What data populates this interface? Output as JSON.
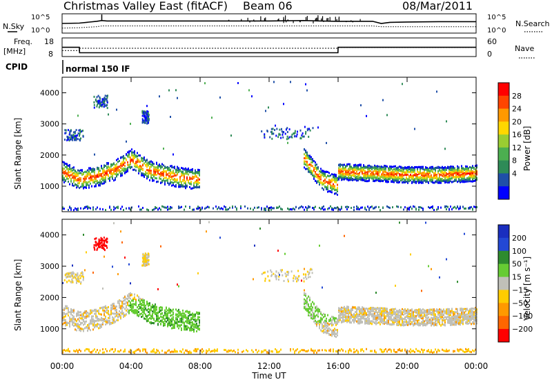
{
  "header": {
    "title": "Christmas Valley East (fitACF)",
    "beam": "Beam 06",
    "date": "08/Mar/2011"
  },
  "strip_labels": {
    "nsky": "N.Sky",
    "nsearch": "N.Search",
    "freq_line1": "Freq.",
    "freq_line2": "[MHz]",
    "nave": "Nave",
    "cpid": "CPID",
    "mode": "normal 150 IF"
  },
  "colors": {
    "power": [
      "#0000ff",
      "#1f4fa8",
      "#2e8b57",
      "#4caf50",
      "#9acd32",
      "#ffd700",
      "#ff9900",
      "#ff4500",
      "#ff0000"
    ],
    "velocity": [
      "#1a2ebf",
      "#2348d4",
      "#2e8b2e",
      "#66cc33",
      "#c0c0b8",
      "#ffcc00",
      "#ff9900",
      "#ff6600",
      "#ff0000"
    ],
    "ground": "#c0c0b8"
  },
  "chart_data": [
    {
      "type": "line",
      "panel": "noise",
      "y_ticks_left": [
        "10^5",
        "10^0"
      ],
      "y_ticks_right": [
        "10^5",
        "10^0"
      ],
      "x": [
        0,
        1,
        2,
        2.3,
        2.6,
        4,
        8,
        12,
        14,
        15,
        16,
        18,
        18.5,
        19,
        20,
        22,
        24
      ],
      "series": [
        {
          "name": "N.Sky",
          "values": [
            2.5,
            2.6,
            3.1,
            3.3,
            3.2,
            3.2,
            3.2,
            3.2,
            3.3,
            3.2,
            3.1,
            3.1,
            2.5,
            2.8,
            2.9,
            3.0,
            3.0
          ]
        },
        {
          "name": "N.Search",
          "values": [
            1.2,
            1.3,
            1.6,
            1.8,
            1.8,
            1.8,
            1.8,
            1.8,
            1.8,
            1.8,
            1.8,
            1.8,
            1.6,
            1.6,
            1.6,
            1.6,
            1.6
          ]
        }
      ],
      "ylim": [
        0,
        5
      ]
    },
    {
      "type": "line",
      "panel": "frequency",
      "y_ticks_left": [
        "18",
        "8"
      ],
      "y_ticks_right": [
        "60",
        "0"
      ],
      "x": [
        0,
        1.0,
        1.01,
        15.99,
        16.0,
        24
      ],
      "series": [
        {
          "name": "Freq.",
          "values": [
            13.6,
            13.6,
            10.3,
            10.3,
            13.6,
            13.6
          ]
        },
        {
          "name": "Nave",
          "values": [
            22,
            22,
            30,
            30,
            33,
            33
          ]
        }
      ]
    },
    {
      "type": "heatmap",
      "panel": "power",
      "ylabel": "Slant Range [km]",
      "yticks": [
        1000,
        2000,
        3000,
        4000
      ],
      "ylim": [
        180,
        4500
      ],
      "xlim": [
        0,
        24
      ],
      "colorbar": {
        "label": "Power [dB]",
        "ticks": [
          "4",
          "8",
          "12",
          "16",
          "20",
          "24",
          "28"
        ]
      },
      "backscatter_band_km": {
        "x": [
          0,
          1,
          2,
          3,
          4,
          5,
          6,
          7,
          8,
          9,
          14,
          15,
          15.99,
          16,
          18,
          20,
          22,
          24
        ],
        "center": [
          1450,
          1200,
          1300,
          1500,
          1850,
          1500,
          1350,
          1250,
          1200,
          null,
          1900,
          1200,
          1000,
          1450,
          1400,
          1350,
          1350,
          1400
        ]
      }
    },
    {
      "type": "heatmap",
      "panel": "velocity",
      "ylabel": "Slant Range [km]",
      "xlabel": "Time UT",
      "yticks": [
        1000,
        2000,
        3000,
        4000
      ],
      "ylim": [
        180,
        4500
      ],
      "xlim": [
        0,
        24
      ],
      "xticks": [
        "00:00",
        "04:00",
        "08:00",
        "12:00",
        "16:00",
        "20:00",
        "00:00"
      ],
      "colorbar": {
        "label": "Velocity [m s⁻¹]",
        "ticks": [
          "200",
          "100",
          "50",
          "15",
          "−15",
          "−50",
          "−100",
          "−200"
        ]
      }
    }
  ]
}
